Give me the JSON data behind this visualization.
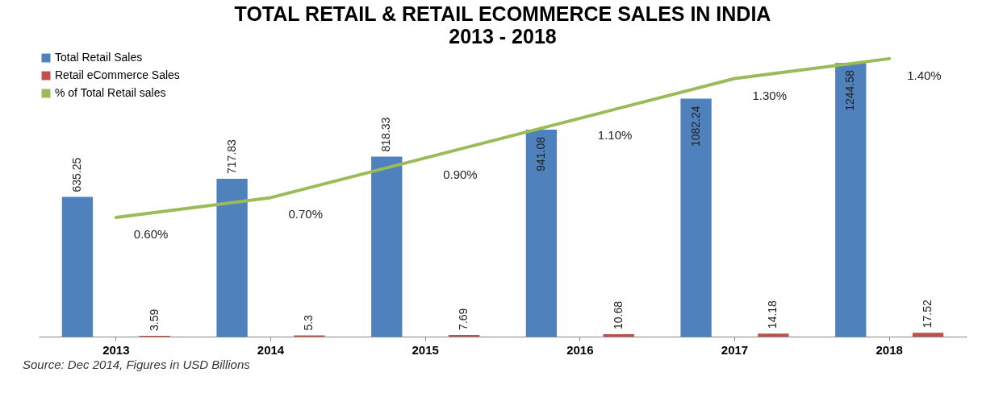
{
  "chart_data": {
    "type": "bar",
    "title": "TOTAL RETAIL & RETAIL ECOMMERCE SALES IN INDIA\n2013 - 2018",
    "categories": [
      "2013",
      "2014",
      "2015",
      "2016",
      "2017",
      "2018"
    ],
    "series": [
      {
        "name": "Total Retail Sales",
        "color": "#4f81bd",
        "values": [
          635.25,
          717.83,
          818.33,
          941.08,
          1082.24,
          1244.58
        ],
        "value_labels": [
          "635.25",
          "717.83",
          "818.33",
          "941.08",
          "1082.24",
          "1244.58"
        ]
      },
      {
        "name": "Retail eCommerce Sales",
        "color": "#c0504d",
        "values": [
          3.59,
          5.3,
          7.69,
          10.68,
          14.18,
          17.52
        ],
        "value_labels": [
          "3.59",
          "5.3",
          "7.69",
          "10.68",
          "14.18",
          "17.52"
        ]
      },
      {
        "name": "% of Total Retail sales",
        "type": "line",
        "axis": "y2",
        "color": "#9bbb59",
        "values": [
          0.6,
          0.7,
          0.9,
          1.1,
          1.3,
          1.4
        ],
        "value_labels": [
          "0.60%",
          "0.70%",
          "0.90%",
          "1.10%",
          "1.30%",
          "1.40%"
        ]
      }
    ],
    "ylim": [
      0,
      1300
    ],
    "y2lim": [
      0,
      1.44
    ],
    "tick_labels": "x",
    "legend": "top left",
    "grid": false,
    "marker": "none",
    "annotations": [
      "Source: Dec 2014, Figures in USD Billions"
    ]
  }
}
